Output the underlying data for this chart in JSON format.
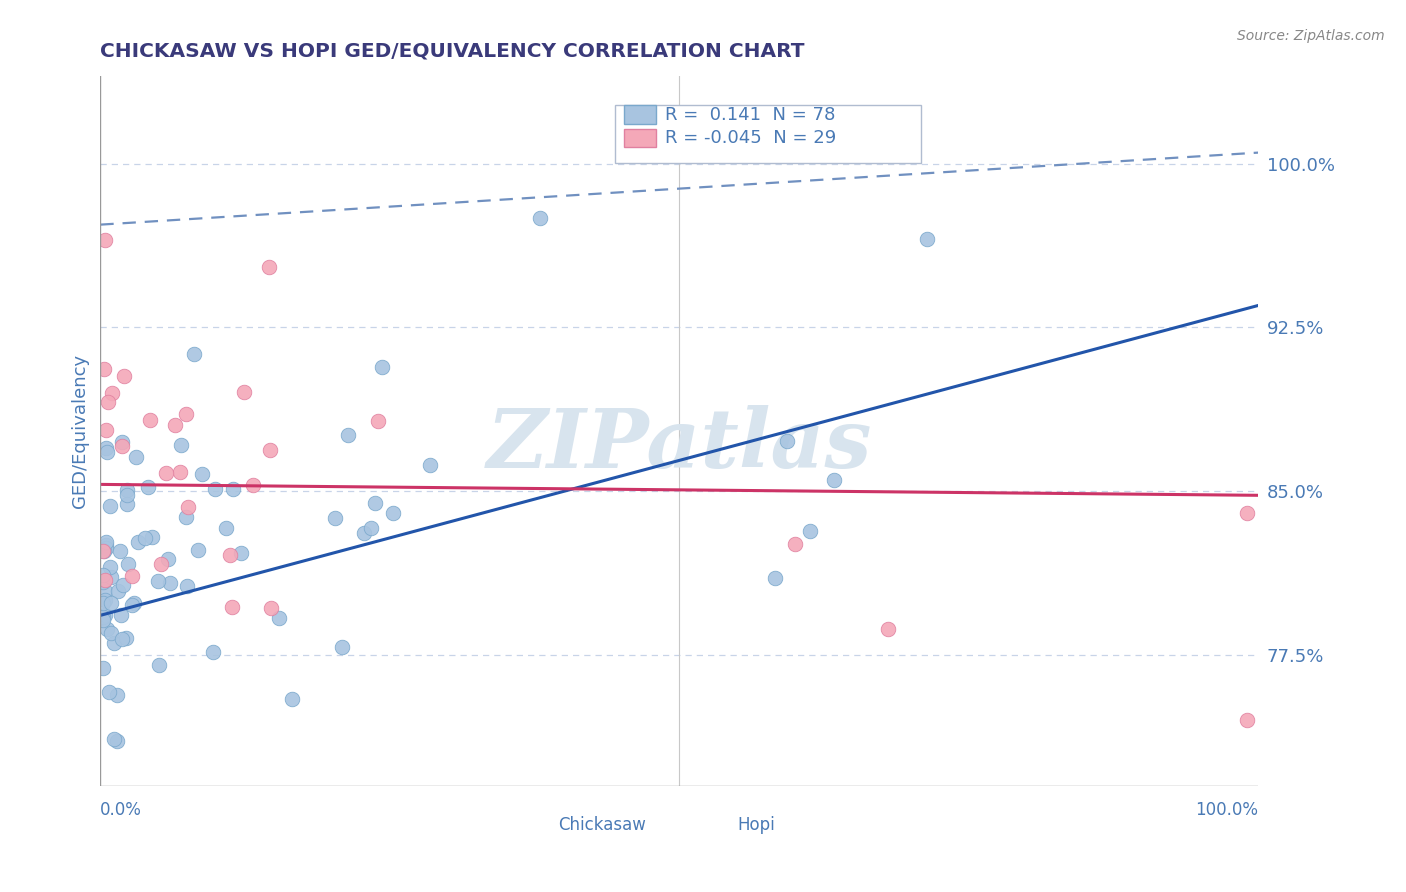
{
  "title": "CHICKASAW VS HOPI GED/EQUIVALENCY CORRELATION CHART",
  "source": "Source: ZipAtlas.com",
  "ylabel": "GED/Equivalency",
  "yright_labels": [
    "77.5%",
    "85.0%",
    "92.5%",
    "100.0%"
  ],
  "yright_values": [
    0.775,
    0.85,
    0.925,
    1.0
  ],
  "chickasaw_color": "#a8c4e0",
  "chickasaw_edge": "#7aa8cc",
  "hopi_color": "#f4a8b8",
  "hopi_edge": "#e080a0",
  "blue_line_color": "#2255aa",
  "pink_line_color": "#cc3366",
  "dashed_line_color": "#7090c0",
  "title_color": "#3a3a7a",
  "axis_label_color": "#4a7ab5",
  "grid_color": "#c8d4e8",
  "watermark_color": "#d8e4ee",
  "blue_line_y_start": 0.793,
  "blue_line_y_end": 0.935,
  "pink_line_y_start": 0.853,
  "pink_line_y_end": 0.848,
  "dashed_line_y_start": 0.972,
  "dashed_line_y_end": 1.005,
  "xlim": [
    0.0,
    1.0
  ],
  "ylim": [
    0.715,
    1.04
  ],
  "legend_r1_val": "0.141",
  "legend_r1_n": "78",
  "legend_r2_val": "-0.045",
  "legend_r2_n": "29"
}
